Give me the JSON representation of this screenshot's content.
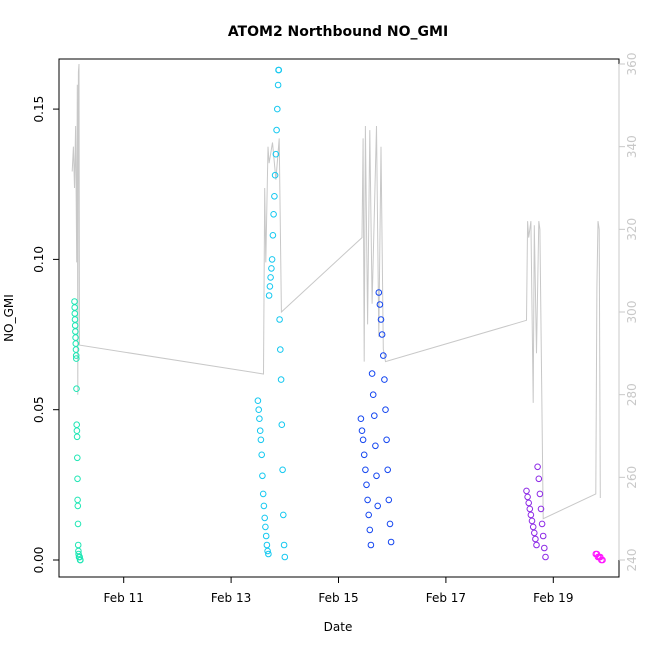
{
  "chart_data": {
    "type": "scatter",
    "title": "ATOM2 Northbound NO_GMI",
    "xlabel": "Date",
    "ylabel": "NO_GMI",
    "x_ticks": [
      "Feb 11",
      "Feb 13",
      "Feb 15",
      "Feb 17",
      "Feb 19"
    ],
    "y_ticks": [
      "0.00",
      "0.05",
      "0.10",
      "0.15"
    ],
    "y2_ticks": [
      "240",
      "260",
      "280",
      "300",
      "320",
      "340",
      "360"
    ],
    "xlim": [
      "2017-02-10 00:00",
      "2017-02-20 00:00"
    ],
    "ylim": [
      0,
      0.165
    ],
    "y2lim": [
      240,
      360
    ],
    "grid": false,
    "colors": {
      "flight1": "#1ee6b4",
      "flight2": "#14c8f0",
      "flight3": "#1446f0",
      "flight4": "#8c28e6",
      "flight5": "#ff14ff",
      "secondary_line": "#c8c8c8",
      "axis_right": "#c8c8c8"
    },
    "scatter_groups": [
      {
        "color": "flight1",
        "points": [
          [
            "2017-02-10 02:00",
            0.086
          ],
          [
            "2017-02-10 02:05",
            0.084
          ],
          [
            "2017-02-10 02:10",
            0.082
          ],
          [
            "2017-02-10 02:15",
            0.08
          ],
          [
            "2017-02-10 02:20",
            0.078
          ],
          [
            "2017-02-10 02:25",
            0.076
          ],
          [
            "2017-02-10 02:30",
            0.074
          ],
          [
            "2017-02-10 02:35",
            0.072
          ],
          [
            "2017-02-10 02:40",
            0.07
          ],
          [
            "2017-02-10 02:45",
            0.068
          ],
          [
            "2017-02-10 02:50",
            0.067
          ],
          [
            "2017-02-10 02:55",
            0.057
          ],
          [
            "2017-02-10 03:00",
            0.045
          ],
          [
            "2017-02-10 03:05",
            0.043
          ],
          [
            "2017-02-10 03:10",
            0.041
          ],
          [
            "2017-02-10 03:15",
            0.034
          ],
          [
            "2017-02-10 03:20",
            0.027
          ],
          [
            "2017-02-10 03:25",
            0.02
          ],
          [
            "2017-02-10 03:30",
            0.018
          ],
          [
            "2017-02-10 03:35",
            0.012
          ],
          [
            "2017-02-10 03:40",
            0.005
          ],
          [
            "2017-02-10 03:45",
            0.003
          ],
          [
            "2017-02-10 03:50",
            0.002
          ],
          [
            "2017-02-10 04:00",
            0.001
          ],
          [
            "2017-02-10 04:10",
            0.001
          ],
          [
            "2017-02-10 04:20",
            0.001
          ],
          [
            "2017-02-10 04:30",
            0.0
          ],
          [
            "2017-02-10 04:40",
            0.0
          ]
        ]
      },
      {
        "color": "flight2",
        "points": [
          [
            "2017-02-13 12:00",
            0.053
          ],
          [
            "2017-02-13 12:20",
            0.05
          ],
          [
            "2017-02-13 12:40",
            0.047
          ],
          [
            "2017-02-13 13:00",
            0.043
          ],
          [
            "2017-02-13 13:20",
            0.04
          ],
          [
            "2017-02-13 13:40",
            0.035
          ],
          [
            "2017-02-13 14:00",
            0.028
          ],
          [
            "2017-02-13 14:20",
            0.022
          ],
          [
            "2017-02-13 14:40",
            0.018
          ],
          [
            "2017-02-13 15:00",
            0.014
          ],
          [
            "2017-02-13 15:20",
            0.011
          ],
          [
            "2017-02-13 15:40",
            0.008
          ],
          [
            "2017-02-13 16:00",
            0.005
          ],
          [
            "2017-02-13 16:20",
            0.003
          ],
          [
            "2017-02-13 16:40",
            0.002
          ],
          [
            "2017-02-13 17:00",
            0.088
          ],
          [
            "2017-02-13 17:20",
            0.091
          ],
          [
            "2017-02-13 17:40",
            0.094
          ],
          [
            "2017-02-13 18:00",
            0.097
          ],
          [
            "2017-02-13 18:20",
            0.1
          ],
          [
            "2017-02-13 18:40",
            0.108
          ],
          [
            "2017-02-13 19:00",
            0.115
          ],
          [
            "2017-02-13 19:20",
            0.121
          ],
          [
            "2017-02-13 19:40",
            0.128
          ],
          [
            "2017-02-13 20:00",
            0.135
          ],
          [
            "2017-02-13 20:20",
            0.143
          ],
          [
            "2017-02-13 20:40",
            0.15
          ],
          [
            "2017-02-13 21:00",
            0.158
          ],
          [
            "2017-02-13 21:10",
            0.163
          ],
          [
            "2017-02-13 21:20",
            0.163
          ],
          [
            "2017-02-13 21:40",
            0.08
          ],
          [
            "2017-02-13 22:00",
            0.07
          ],
          [
            "2017-02-13 22:20",
            0.06
          ],
          [
            "2017-02-13 22:40",
            0.045
          ],
          [
            "2017-02-13 23:00",
            0.03
          ],
          [
            "2017-02-13 23:20",
            0.015
          ],
          [
            "2017-02-13 23:40",
            0.005
          ],
          [
            "2017-02-14 00:00",
            0.001
          ]
        ]
      },
      {
        "color": "flight3",
        "points": [
          [
            "2017-02-15 10:00",
            0.047
          ],
          [
            "2017-02-15 10:30",
            0.043
          ],
          [
            "2017-02-15 11:00",
            0.04
          ],
          [
            "2017-02-15 11:30",
            0.035
          ],
          [
            "2017-02-15 12:00",
            0.03
          ],
          [
            "2017-02-15 12:30",
            0.025
          ],
          [
            "2017-02-15 13:00",
            0.02
          ],
          [
            "2017-02-15 13:30",
            0.015
          ],
          [
            "2017-02-15 14:00",
            0.01
          ],
          [
            "2017-02-15 14:30",
            0.005
          ],
          [
            "2017-02-15 15:00",
            0.062
          ],
          [
            "2017-02-15 15:30",
            0.055
          ],
          [
            "2017-02-15 16:00",
            0.048
          ],
          [
            "2017-02-15 16:30",
            0.038
          ],
          [
            "2017-02-15 17:00",
            0.028
          ],
          [
            "2017-02-15 17:30",
            0.018
          ],
          [
            "2017-02-15 18:00",
            0.089
          ],
          [
            "2017-02-15 18:30",
            0.085
          ],
          [
            "2017-02-15 19:00",
            0.08
          ],
          [
            "2017-02-15 19:30",
            0.075
          ],
          [
            "2017-02-15 20:00",
            0.068
          ],
          [
            "2017-02-15 20:30",
            0.06
          ],
          [
            "2017-02-15 21:00",
            0.05
          ],
          [
            "2017-02-15 21:30",
            0.04
          ],
          [
            "2017-02-15 22:00",
            0.03
          ],
          [
            "2017-02-15 22:30",
            0.02
          ],
          [
            "2017-02-15 23:00",
            0.012
          ],
          [
            "2017-02-15 23:30",
            0.006
          ]
        ]
      },
      {
        "color": "flight4",
        "points": [
          [
            "2017-02-18 12:00",
            0.023
          ],
          [
            "2017-02-18 12:30",
            0.021
          ],
          [
            "2017-02-18 13:00",
            0.019
          ],
          [
            "2017-02-18 13:30",
            0.017
          ],
          [
            "2017-02-18 14:00",
            0.015
          ],
          [
            "2017-02-18 14:30",
            0.013
          ],
          [
            "2017-02-18 15:00",
            0.011
          ],
          [
            "2017-02-18 15:30",
            0.009
          ],
          [
            "2017-02-18 16:00",
            0.007
          ],
          [
            "2017-02-18 16:30",
            0.005
          ],
          [
            "2017-02-18 17:00",
            0.031
          ],
          [
            "2017-02-18 17:30",
            0.027
          ],
          [
            "2017-02-18 18:00",
            0.022
          ],
          [
            "2017-02-18 18:30",
            0.017
          ],
          [
            "2017-02-18 19:00",
            0.012
          ],
          [
            "2017-02-18 19:30",
            0.008
          ],
          [
            "2017-02-18 20:00",
            0.004
          ],
          [
            "2017-02-18 20:30",
            0.001
          ]
        ]
      },
      {
        "color": "flight5",
        "points": [
          [
            "2017-02-19 19:00",
            0.002
          ],
          [
            "2017-02-19 19:30",
            0.002
          ],
          [
            "2017-02-19 20:00",
            0.001
          ],
          [
            "2017-02-19 20:30",
            0.001
          ],
          [
            "2017-02-19 21:00",
            0.001
          ],
          [
            "2017-02-19 21:30",
            0.0
          ],
          [
            "2017-02-19 22:00",
            0.0
          ]
        ]
      }
    ],
    "secondary_line": {
      "axis": "right",
      "points": [
        [
          "2017-02-10 01:00",
          334
        ],
        [
          "2017-02-10 01:30",
          340
        ],
        [
          "2017-02-10 02:00",
          330
        ],
        [
          "2017-02-10 02:30",
          345
        ],
        [
          "2017-02-10 03:00",
          312
        ],
        [
          "2017-02-10 03:15",
          355
        ],
        [
          "2017-02-10 03:30",
          280
        ],
        [
          "2017-02-10 03:45",
          358
        ],
        [
          "2017-02-10 04:00",
          360
        ],
        [
          "2017-02-10 04:15",
          292
        ],
        [
          "2017-02-13 14:30",
          285
        ],
        [
          "2017-02-13 15:00",
          330
        ],
        [
          "2017-02-13 15:30",
          312
        ],
        [
          "2017-02-13 16:30",
          340
        ],
        [
          "2017-02-13 17:00",
          336
        ],
        [
          "2017-02-13 18:30",
          341
        ],
        [
          "2017-02-13 20:00",
          332
        ],
        [
          "2017-02-13 21:30",
          342
        ],
        [
          "2017-02-13 22:30",
          300
        ],
        [
          "2017-02-15 10:30",
          318
        ],
        [
          "2017-02-15 11:00",
          342
        ],
        [
          "2017-02-15 11:30",
          288
        ],
        [
          "2017-02-15 12:00",
          345
        ],
        [
          "2017-02-15 13:00",
          297
        ],
        [
          "2017-02-15 14:00",
          344
        ],
        [
          "2017-02-15 15:00",
          302
        ],
        [
          "2017-02-15 17:00",
          345
        ],
        [
          "2017-02-15 18:00",
          294
        ],
        [
          "2017-02-15 19:00",
          340
        ],
        [
          "2017-02-15 20:00",
          291
        ],
        [
          "2017-02-15 21:00",
          288
        ],
        [
          "2017-02-18 12:00",
          298
        ],
        [
          "2017-02-18 12:30",
          322
        ],
        [
          "2017-02-18 13:00",
          318
        ],
        [
          "2017-02-18 14:00",
          322
        ],
        [
          "2017-02-18 15:00",
          278
        ],
        [
          "2017-02-18 15:30",
          321
        ],
        [
          "2017-02-18 16:30",
          290
        ],
        [
          "2017-02-18 17:30",
          322
        ],
        [
          "2017-02-18 18:00",
          320
        ],
        [
          "2017-02-18 19:30",
          250
        ],
        [
          "2017-02-19 19:00",
          256
        ],
        [
          "2017-02-19 19:30",
          306
        ],
        [
          "2017-02-19 20:00",
          322
        ],
        [
          "2017-02-19 20:30",
          320
        ],
        [
          "2017-02-19 21:00",
          255
        ]
      ]
    }
  }
}
